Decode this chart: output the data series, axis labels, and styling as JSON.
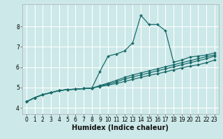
{
  "xlabel": "Humidex (Indice chaleur)",
  "bg_color": "#cce8e8",
  "grid_color": "#ffffff",
  "line_color": "#1a6b6b",
  "xlim": [
    -0.5,
    23.5
  ],
  "ylim": [
    3.7,
    9.1
  ],
  "xticks": [
    0,
    1,
    2,
    3,
    4,
    5,
    6,
    7,
    8,
    9,
    10,
    11,
    12,
    13,
    14,
    15,
    16,
    17,
    18,
    19,
    20,
    21,
    22,
    23
  ],
  "yticks": [
    4,
    5,
    6,
    7,
    8
  ],
  "lines": [
    [
      4.3,
      4.5,
      4.65,
      4.75,
      4.85,
      4.9,
      4.92,
      4.95,
      4.97,
      5.05,
      5.12,
      5.2,
      5.3,
      5.4,
      5.5,
      5.6,
      5.68,
      5.77,
      5.87,
      5.97,
      6.05,
      6.12,
      6.22,
      6.35
    ],
    [
      4.3,
      4.5,
      4.65,
      4.75,
      4.85,
      4.9,
      4.92,
      4.95,
      4.97,
      5.07,
      5.17,
      5.28,
      5.42,
      5.52,
      5.62,
      5.72,
      5.82,
      5.92,
      6.02,
      6.12,
      6.22,
      6.32,
      6.42,
      6.55
    ],
    [
      4.3,
      4.5,
      4.65,
      4.75,
      4.85,
      4.9,
      4.92,
      4.95,
      4.97,
      5.1,
      5.22,
      5.35,
      5.5,
      5.62,
      5.72,
      5.82,
      5.92,
      6.02,
      6.12,
      6.22,
      6.32,
      6.42,
      6.52,
      6.6
    ],
    [
      4.3,
      4.5,
      4.65,
      4.75,
      4.85,
      4.9,
      4.92,
      4.95,
      4.97,
      5.8,
      6.55,
      6.65,
      6.8,
      7.2,
      8.55,
      8.1,
      8.1,
      7.8,
      6.25,
      6.35,
      6.5,
      6.55,
      6.6,
      6.7
    ]
  ],
  "xlabel_fontsize": 7,
  "tick_labelsize": 5.5,
  "marker_size": 2.0,
  "linewidth": 0.9
}
